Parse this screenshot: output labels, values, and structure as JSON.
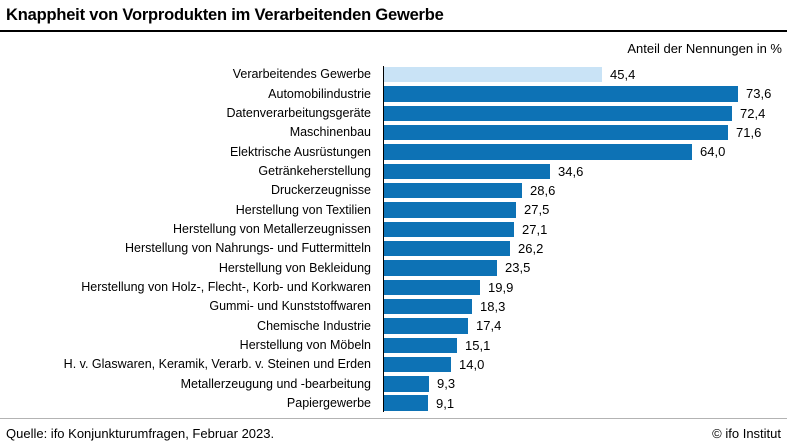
{
  "header": {
    "title": "Knappheit von Vorprodukten im Verarbeitenden Gewerbe",
    "unit_note": "Anteil der Nennungen in %"
  },
  "footer": {
    "source": "Quelle: ifo Konjunkturumfragen, Februar 2023.",
    "copyright": "© ifo Institut"
  },
  "colors": {
    "bar_blue": "#0d72b5",
    "highlight_light_blue": "#c9e3f6",
    "axis_black": "#000000",
    "separator_gray": "#b3b3b3"
  },
  "chart_data": {
    "type": "bar",
    "orientation": "horizontal",
    "title": "Knappheit von Vorprodukten im Verarbeitenden Gewerbe",
    "unit_label": "Anteil der Nennungen in %",
    "grid": false,
    "xlim": [
      0,
      80
    ],
    "highlight_index": 0,
    "value_label_position": "end-of-bar",
    "categories": [
      "Verarbeitendes Gewerbe",
      "Automobilindustrie",
      "Datenverarbeitungsgeräte",
      "Maschinenbau",
      "Elektrische Ausrüstungen",
      "Getränkeherstellung",
      "Druckerzeugnisse",
      "Herstellung von Textilien",
      "Herstellung von Metallerzeugnissen",
      "Herstellung von Nahrungs- und Futtermitteln",
      "Herstellung von Bekleidung",
      "Herstellung von Holz-, Flecht-, Korb- und Korkwaren",
      "Gummi- und Kunststoffwaren",
      "Chemische Industrie",
      "Herstellung von Möbeln",
      "H. v. Glaswaren, Keramik, Verarb. v. Steinen und Erden",
      "Metallerzeugung und -bearbeitung",
      "Papiergewerbe"
    ],
    "values": [
      45.4,
      73.6,
      72.4,
      71.6,
      64.0,
      34.6,
      28.6,
      27.5,
      27.1,
      26.2,
      23.5,
      19.9,
      18.3,
      17.4,
      15.1,
      14.0,
      9.3,
      9.1
    ],
    "value_labels": [
      "45,4",
      "73,6",
      "72,4",
      "71,6",
      "64,0",
      "34,6",
      "28,6",
      "27,5",
      "27,1",
      "26,2",
      "23,5",
      "19,9",
      "18,3",
      "17,4",
      "15,1",
      "14,0",
      "9,3",
      "9,1"
    ]
  }
}
